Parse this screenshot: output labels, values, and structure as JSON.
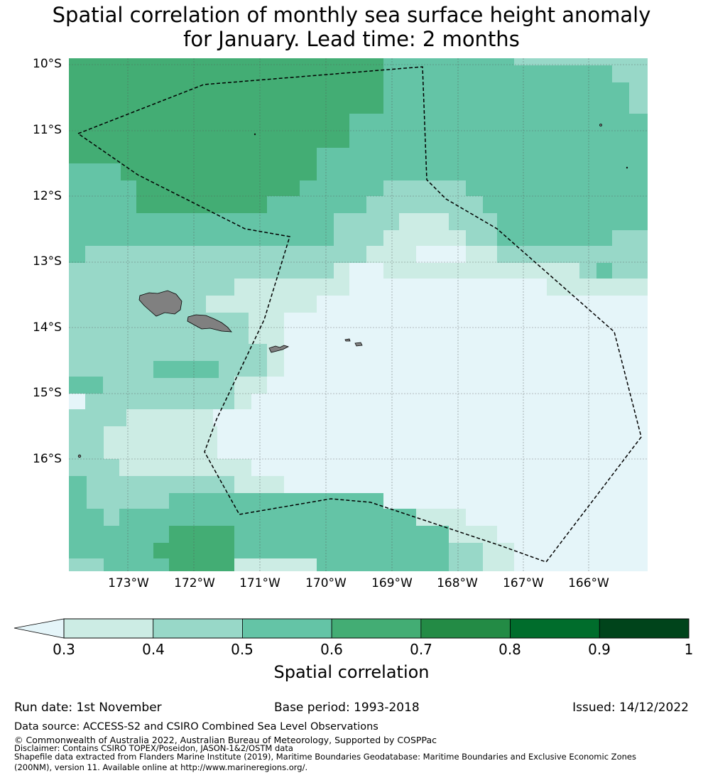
{
  "title_line1": "Spatial correlation of monthly sea surface height anomaly",
  "title_line2": "for January. Lead time: 2 months",
  "map": {
    "lat_labels": [
      "10°S",
      "11°S",
      "12°S",
      "13°S",
      "14°S",
      "15°S",
      "16°S"
    ],
    "lon_labels": [
      "173°W",
      "172°W",
      "171°W",
      "170°W",
      "169°W",
      "168°W",
      "167°W",
      "166°W"
    ],
    "features": [
      "Samoa",
      "American Samoa",
      "EEZ boundary (dashed)"
    ]
  },
  "colorbar": {
    "title": "Spatial correlation",
    "tick_labels": [
      "0.3",
      "0.4",
      "0.5",
      "0.6",
      "0.7",
      "0.8",
      "0.9",
      "1"
    ],
    "bin_colors": [
      "#ccece4",
      "#98d8c8",
      "#64c4a6",
      "#43ad74",
      "#238b45",
      "#006d2c",
      "#00441b"
    ],
    "extend_color": "#e5f5f9"
  },
  "footer": {
    "run_date": "Run date: 1st November",
    "base_period": "Base period: 1993-2018",
    "issued": "Issued: 14/12/2022",
    "data_source": "Data source: ACCESS-S2 and CSIRO Combined Sea Level Observations",
    "copyright": "© Commonwealth of Australia 2022, Australian Bureau of Meteorology, Supported by COSPPac",
    "disclaimer": "Disclaimer: Contains CSIRO TOPEX/Poseidon, JASON-1&2/OSTM data",
    "shapefile1": "Shapefile data extracted from Flanders Marine Institute (2019), Maritime Boundaries Geodatabase: Maritime Boundaries and Exclusive Economic Zones",
    "shapefile2": "(200NM), version 11. Available online at http://www.marineregions.org/."
  }
}
